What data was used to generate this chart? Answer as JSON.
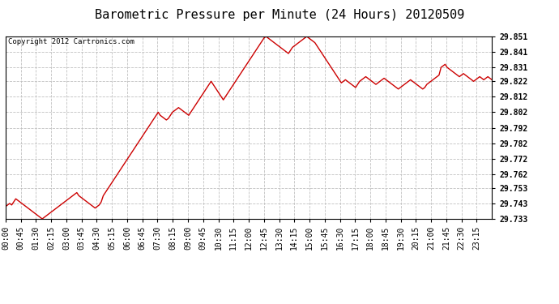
{
  "title": "Barometric Pressure per Minute (24 Hours) 20120509",
  "copyright": "Copyright 2012 Cartronics.com",
  "line_color": "#cc0000",
  "bg_color": "#ffffff",
  "plot_bg_color": "#ffffff",
  "grid_color": "#c0c0c0",
  "ylim": [
    29.733,
    29.851
  ],
  "yticks": [
    29.733,
    29.743,
    29.753,
    29.762,
    29.772,
    29.782,
    29.792,
    29.802,
    29.812,
    29.822,
    29.831,
    29.841,
    29.851
  ],
  "xtick_labels": [
    "00:00",
    "00:45",
    "01:30",
    "02:15",
    "03:00",
    "03:45",
    "04:30",
    "05:15",
    "06:00",
    "06:45",
    "07:30",
    "08:15",
    "09:00",
    "09:45",
    "10:30",
    "11:15",
    "12:00",
    "12:45",
    "13:30",
    "14:15",
    "15:00",
    "15:45",
    "16:30",
    "17:15",
    "18:00",
    "18:45",
    "19:30",
    "20:15",
    "21:00",
    "21:45",
    "22:30",
    "23:15"
  ],
  "title_fontsize": 11,
  "tick_fontsize": 7,
  "copyright_fontsize": 6.5,
  "line_width": 1.0,
  "pressure_data": [
    29.741,
    29.742,
    29.743,
    29.742,
    29.744,
    29.746,
    29.745,
    29.744,
    29.743,
    29.742,
    29.741,
    29.74,
    29.739,
    29.738,
    29.737,
    29.736,
    29.735,
    29.734,
    29.733,
    29.734,
    29.735,
    29.736,
    29.737,
    29.738,
    29.739,
    29.74,
    29.741,
    29.742,
    29.743,
    29.744,
    29.745,
    29.746,
    29.747,
    29.748,
    29.749,
    29.75,
    29.748,
    29.747,
    29.746,
    29.745,
    29.744,
    29.743,
    29.742,
    29.741,
    29.74,
    29.741,
    29.742,
    29.744,
    29.748,
    29.75,
    29.752,
    29.754,
    29.756,
    29.758,
    29.76,
    29.762,
    29.764,
    29.766,
    29.768,
    29.77,
    29.772,
    29.774,
    29.776,
    29.778,
    29.78,
    29.782,
    29.784,
    29.786,
    29.788,
    29.79,
    29.792,
    29.794,
    29.796,
    29.798,
    29.8,
    29.802,
    29.8,
    29.799,
    29.798,
    29.797,
    29.798,
    29.8,
    29.802,
    29.803,
    29.804,
    29.805,
    29.804,
    29.803,
    29.802,
    29.801,
    29.8,
    29.802,
    29.804,
    29.806,
    29.808,
    29.81,
    29.812,
    29.814,
    29.816,
    29.818,
    29.82,
    29.822,
    29.82,
    29.818,
    29.816,
    29.814,
    29.812,
    29.81,
    29.812,
    29.814,
    29.816,
    29.818,
    29.82,
    29.822,
    29.824,
    29.826,
    29.828,
    29.83,
    29.832,
    29.834,
    29.836,
    29.838,
    29.84,
    29.842,
    29.844,
    29.846,
    29.848,
    29.85,
    29.851,
    29.85,
    29.849,
    29.848,
    29.847,
    29.846,
    29.845,
    29.844,
    29.843,
    29.842,
    29.841,
    29.84,
    29.842,
    29.844,
    29.845,
    29.846,
    29.847,
    29.848,
    29.849,
    29.85,
    29.851,
    29.85,
    29.849,
    29.848,
    29.847,
    29.845,
    29.843,
    29.841,
    29.839,
    29.837,
    29.835,
    29.833,
    29.831,
    29.829,
    29.827,
    29.825,
    29.823,
    29.821,
    29.822,
    29.823,
    29.822,
    29.821,
    29.82,
    29.819,
    29.818,
    29.82,
    29.822,
    29.823,
    29.824,
    29.825,
    29.824,
    29.823,
    29.822,
    29.821,
    29.82,
    29.821,
    29.822,
    29.823,
    29.824,
    29.823,
    29.822,
    29.821,
    29.82,
    29.819,
    29.818,
    29.817,
    29.818,
    29.819,
    29.82,
    29.821,
    29.822,
    29.823,
    29.822,
    29.821,
    29.82,
    29.819,
    29.818,
    29.817,
    29.818,
    29.82,
    29.821,
    29.822,
    29.823,
    29.824,
    29.825,
    29.826,
    29.831,
    29.832,
    29.833,
    29.831,
    29.83,
    29.829,
    29.828,
    29.827,
    29.826,
    29.825,
    29.826,
    29.827,
    29.826,
    29.825,
    29.824,
    29.823,
    29.822,
    29.823,
    29.824,
    29.825,
    29.824,
    29.823,
    29.824,
    29.825,
    29.824,
    29.823
  ]
}
